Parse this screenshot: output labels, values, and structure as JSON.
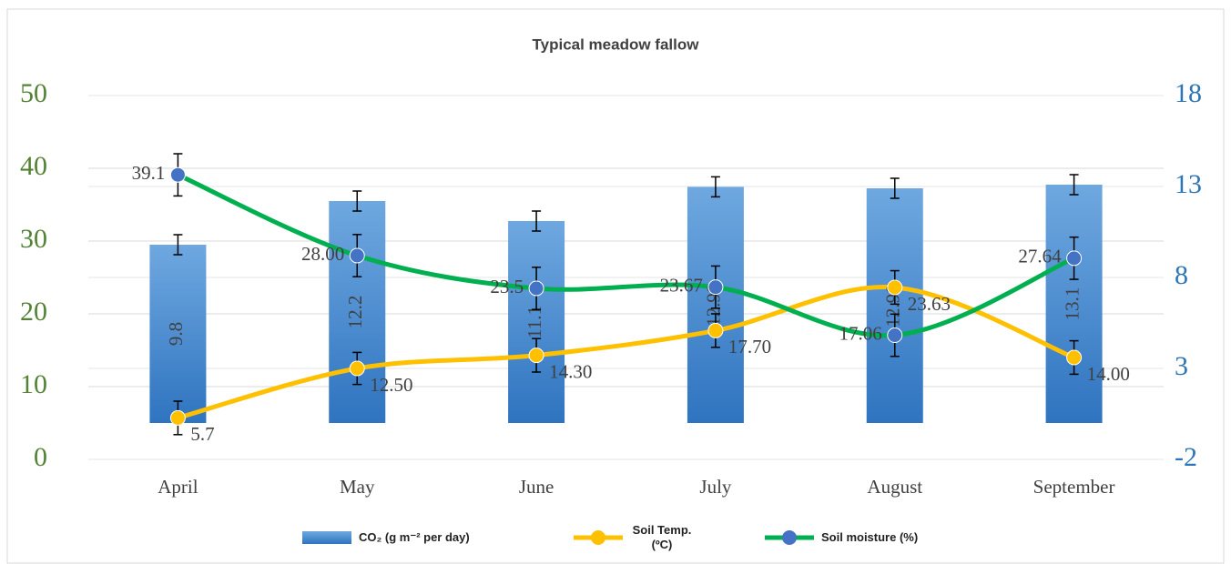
{
  "chart_data": {
    "type": "bar-line",
    "title": "Typical meadow fallow",
    "categories": [
      "April",
      "May",
      "June",
      "July",
      "August",
      "September"
    ],
    "ylim": [
      0,
      50
    ],
    "yticks": [
      0,
      10,
      20,
      30,
      40,
      50
    ],
    "y2lim": [
      -2,
      18
    ],
    "y2ticks": [
      -2,
      3,
      8,
      13,
      18
    ],
    "grid": true,
    "series": [
      {
        "name": "CO₂ (g m⁻² per day)",
        "type": "bar",
        "axis": "y2",
        "color": "#3d85cf",
        "values": [
          9.8,
          12.2,
          11.1,
          12.98,
          12.9,
          13.1
        ],
        "value_labels": [
          "9.8",
          "12.2",
          "11.1",
          "12.98",
          "12.90",
          "13.1"
        ],
        "errors": [
          0.55,
          0.55,
          0.55,
          0.55,
          0.55,
          0.55
        ]
      },
      {
        "name": "Soil Temp. (ºC)",
        "type": "line",
        "axis": "y",
        "color": "#ffc000",
        "marker_color": "#ffc000",
        "values": [
          5.7,
          12.5,
          14.3,
          17.7,
          23.63,
          14.0
        ],
        "value_labels": [
          "5.7",
          "12.50",
          "14.30",
          "17.70",
          "23.63",
          "14.00"
        ],
        "errors": [
          2.3,
          2.2,
          2.3,
          2.3,
          2.3,
          2.3
        ]
      },
      {
        "name": "Soil moisture (%)",
        "type": "line",
        "axis": "y",
        "color": "#00b050",
        "marker_color": "#4472c4",
        "values": [
          39.1,
          28.0,
          23.5,
          23.67,
          17.06,
          27.64
        ],
        "value_labels": [
          "39.1",
          "28.00",
          "23.5",
          "23.67",
          "17.06",
          "27.64"
        ],
        "errors": [
          2.9,
          2.9,
          2.9,
          2.9,
          2.9,
          2.9
        ]
      }
    ]
  }
}
